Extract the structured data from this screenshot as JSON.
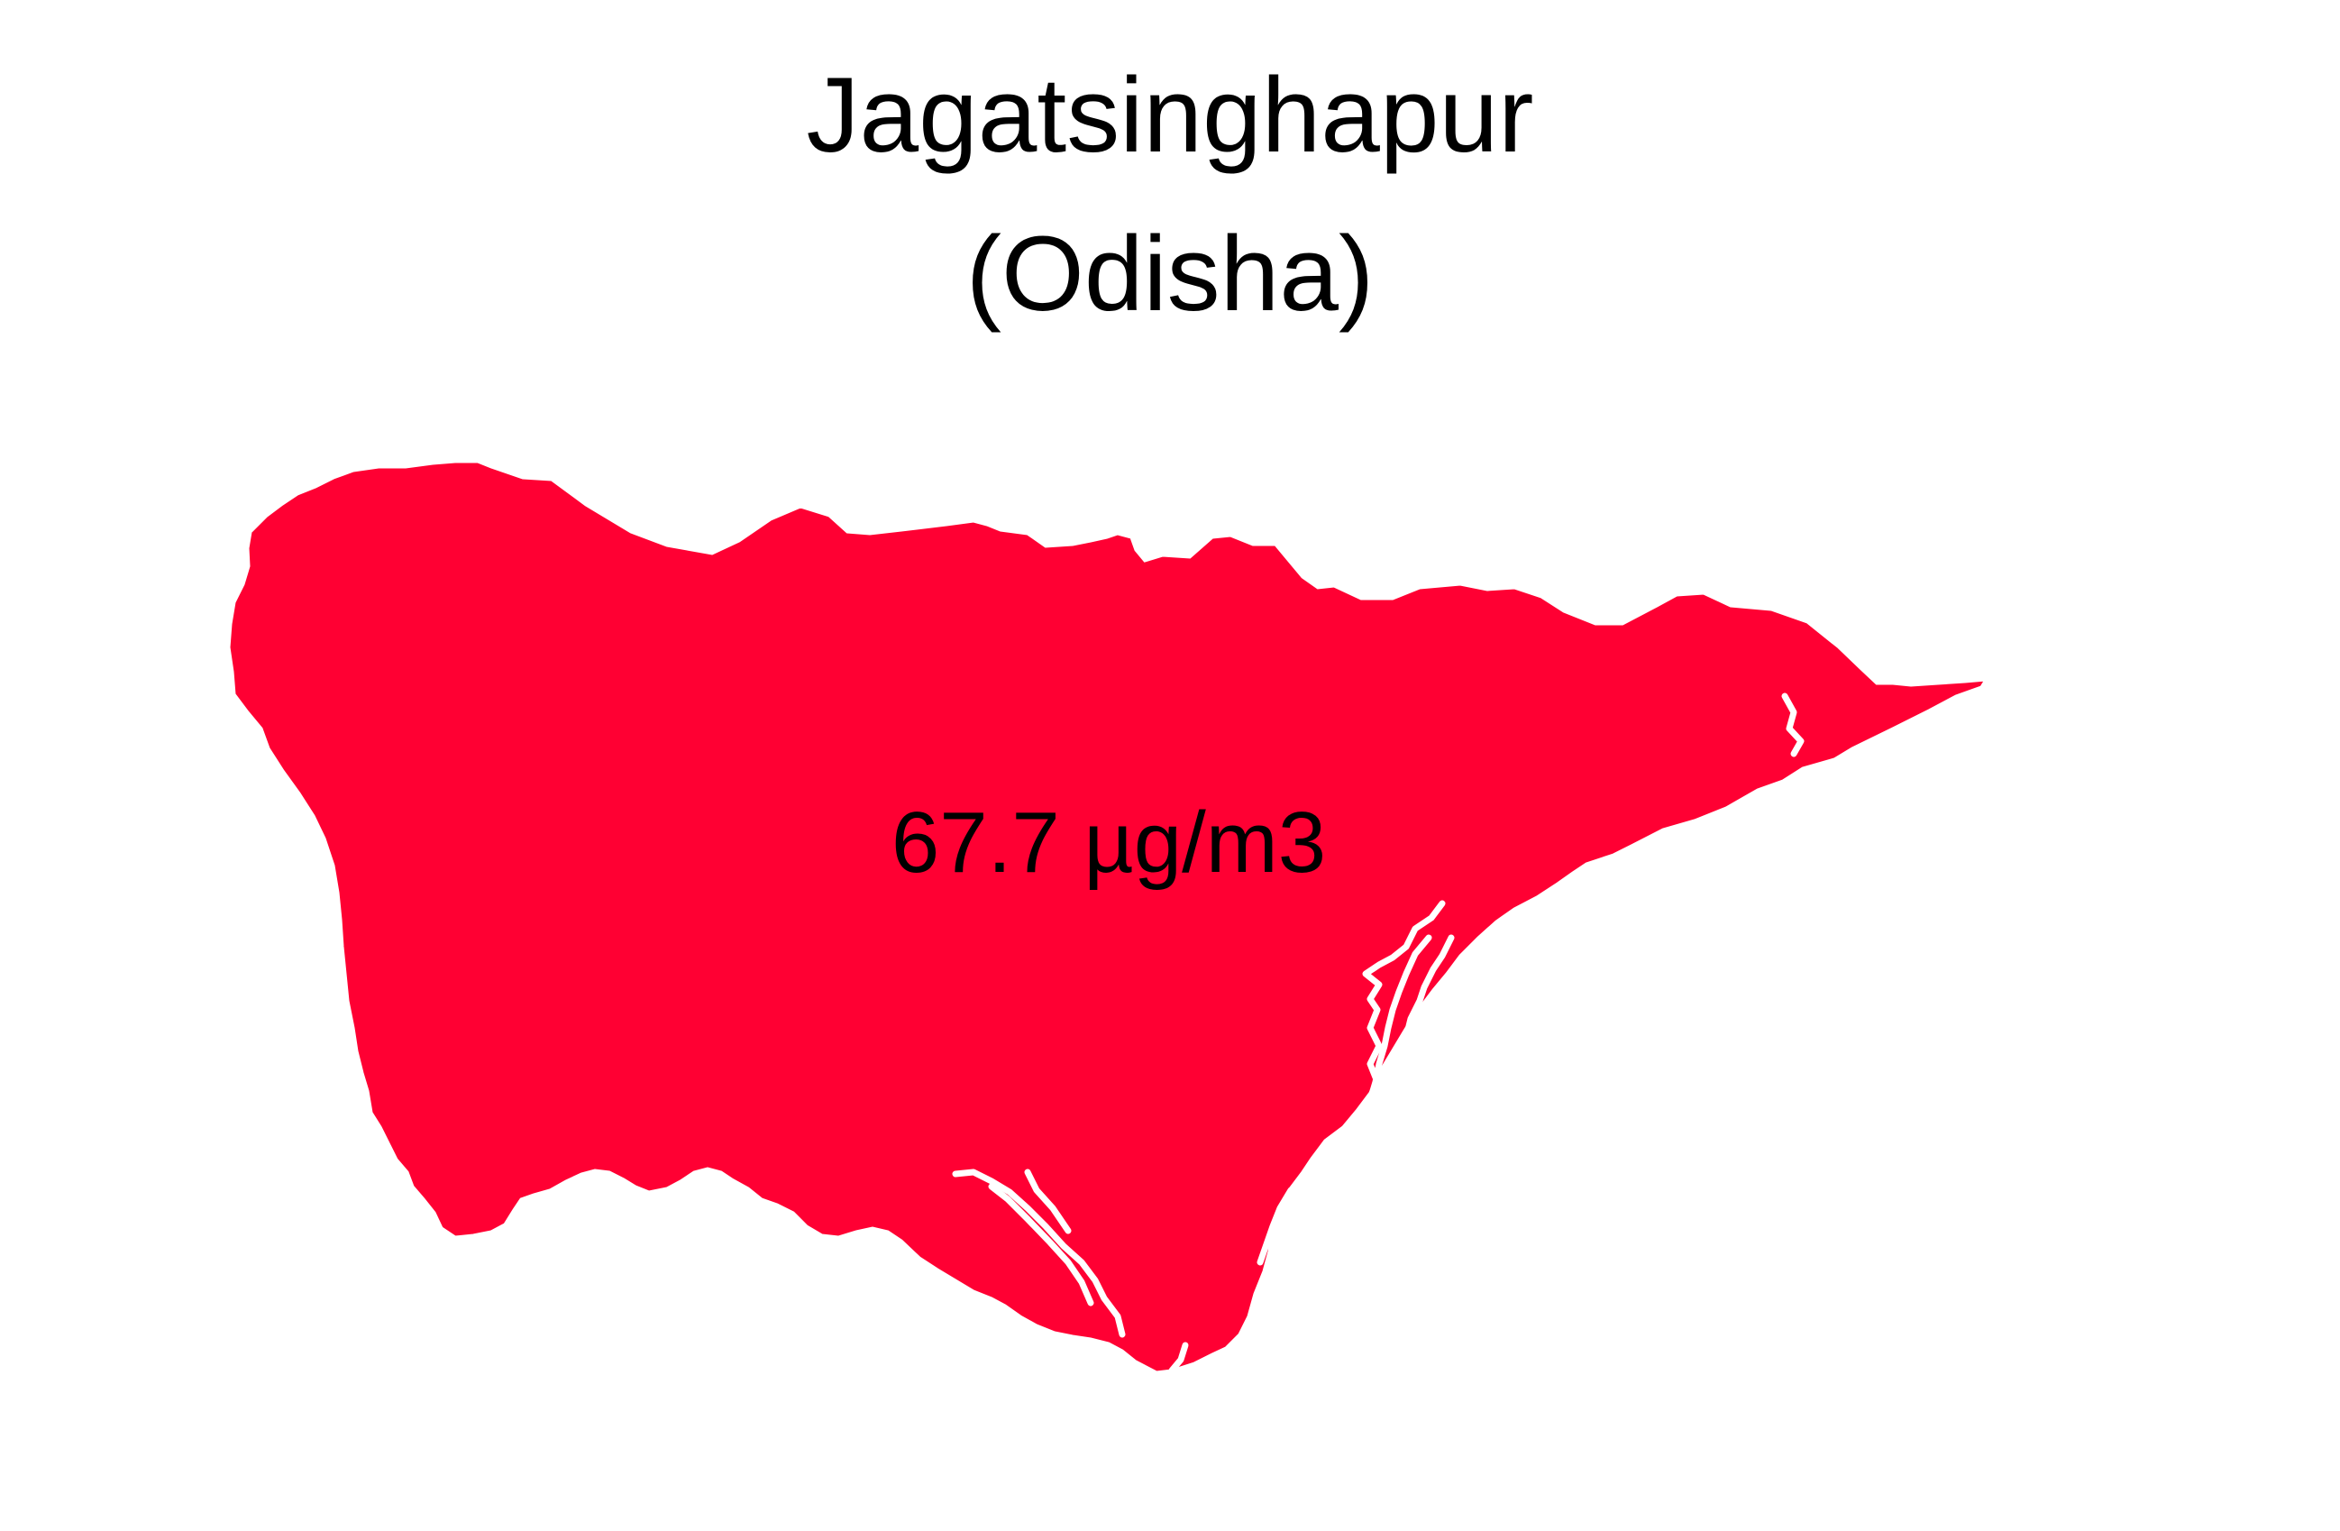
{
  "title": {
    "line1": "Jagatsinghapur",
    "line2": "(Odisha)"
  },
  "map": {
    "region_fill": "#FF0033",
    "border_color": "#FFFFFF",
    "value_label": "67.7 µg/m3"
  }
}
